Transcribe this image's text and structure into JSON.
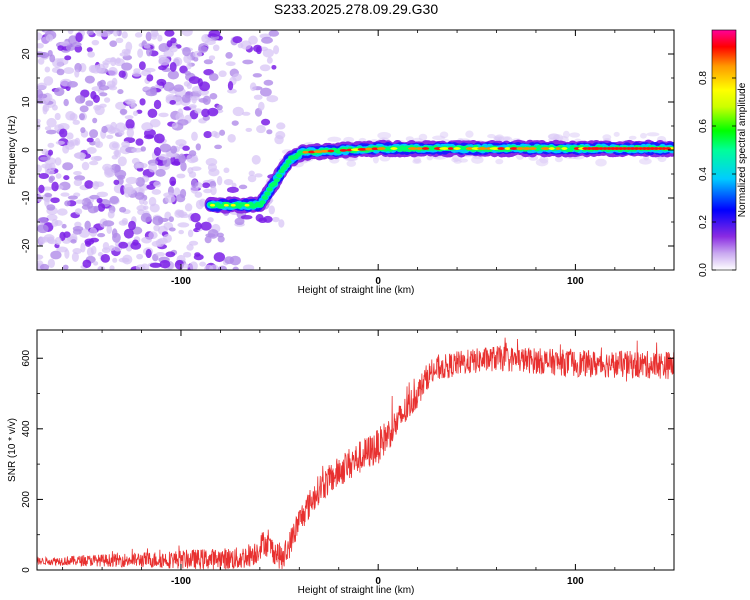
{
  "title": "S233.2025.278.09.29.G30",
  "chart_data": [
    {
      "type": "heatmap",
      "name": "spectrogram",
      "xlabel": "Height of straight line (km)",
      "ylabel": "Frequency (Hz)",
      "xlim": [
        -173,
        150
      ],
      "ylim": [
        -25,
        25
      ],
      "x_ticks": [
        -100,
        0,
        100
      ],
      "x_tick_labels": [
        "-100",
        "0",
        "100"
      ],
      "y_ticks": [
        20,
        10,
        0,
        -10,
        -20
      ],
      "y_tick_labels": [
        "20",
        "10",
        "0",
        "-10",
        "-20"
      ],
      "ridge": {
        "description": "dominant frequency track",
        "heights": [
          -85,
          -60,
          -45,
          -38,
          0,
          150
        ],
        "frequency": [
          -11.5,
          -11.5,
          -2,
          -0.5,
          0.3,
          0.3
        ]
      },
      "noise_region_km": [
        -173,
        -55
      ],
      "colorbar": {
        "label": "Normalized spectral amplitude",
        "range": [
          0,
          1
        ],
        "ticks": [
          0.0,
          0.2,
          0.4,
          0.6,
          0.8
        ],
        "tick_labels": [
          "0.0",
          "0.2",
          "0.4",
          "0.6",
          "0.8"
        ],
        "colors": [
          "#ffffff",
          "#8a2be2",
          "#0000ff",
          "#00ffff",
          "#00ff00",
          "#ffff00",
          "#ffa500",
          "#ff0000",
          "#ff00ff"
        ]
      }
    },
    {
      "type": "line",
      "name": "snr",
      "xlabel": "Height of straight line (km)",
      "ylabel": "SNR (10 * v/v)",
      "xlim": [
        -173,
        150
      ],
      "ylim": [
        0,
        680
      ],
      "x_ticks": [
        -100,
        0,
        100
      ],
      "x_tick_labels": [
        "-100",
        "0",
        "100"
      ],
      "y_ticks": [
        0,
        200,
        400,
        600
      ],
      "y_tick_labels": [
        "0",
        "200",
        "400",
        "600"
      ],
      "color": "#e8302f",
      "trend_x": [
        -173,
        -70,
        -62,
        -58,
        -48,
        -40,
        -30,
        -15,
        0,
        10,
        20,
        25,
        30,
        40,
        60,
        100,
        150
      ],
      "trend_y": [
        25,
        32,
        50,
        80,
        30,
        140,
        230,
        300,
        350,
        420,
        500,
        550,
        570,
        585,
        600,
        585,
        580
      ],
      "noise_x": [
        -173,
        -40,
        0,
        30,
        150
      ],
      "noise_amp": [
        10,
        40,
        50,
        35,
        40
      ]
    }
  ]
}
